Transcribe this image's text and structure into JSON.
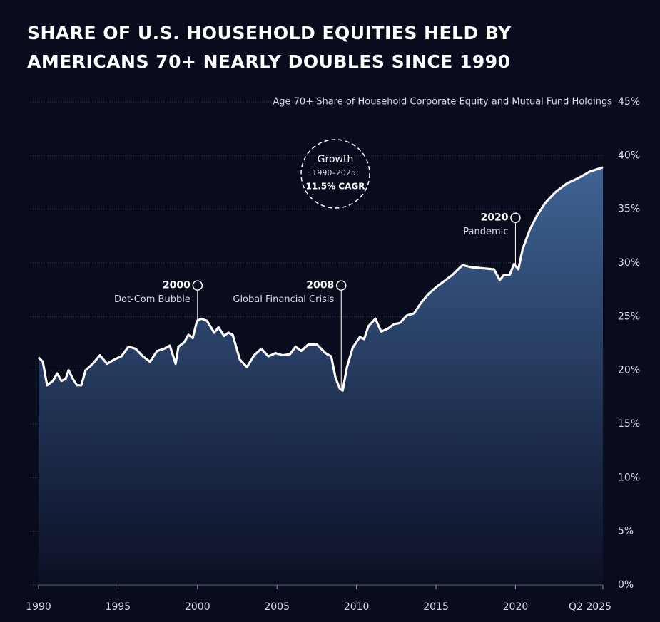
{
  "chart_data": {
    "type": "area",
    "title": "SHARE OF U.S. HOUSEHOLD EQUITIES HELD BY AMERICANS 70+ NEARLY DOUBLES SINCE 1990",
    "y_axis_label": "Age 70+ Share of Household Corporate Equity and Mutual Fund Holdings",
    "color": "#ffffff",
    "fill_color": "#3f6394",
    "grid": true,
    "x": [
      1990.0,
      1990.27,
      1990.54,
      1990.9,
      1991.17,
      1991.44,
      1991.71,
      1991.89,
      1992.16,
      1992.42,
      1992.69,
      1992.96,
      1993.41,
      1993.86,
      1994.31,
      1994.76,
      1995.21,
      1995.66,
      1996.11,
      1996.56,
      1997.01,
      1997.46,
      1997.9,
      1998.26,
      1998.62,
      1998.8,
      1999.16,
      1999.43,
      1999.7,
      1999.97,
      2000.24,
      2000.6,
      2001.05,
      2001.32,
      2001.67,
      2001.94,
      2002.21,
      2002.66,
      2003.11,
      2003.56,
      2004.01,
      2004.46,
      2004.91,
      2005.36,
      2005.81,
      2006.17,
      2006.52,
      2006.97,
      2007.51,
      2008.05,
      2008.41,
      2008.68,
      2008.95,
      2009.13,
      2009.4,
      2009.76,
      2010.21,
      2010.48,
      2010.75,
      2011.19,
      2011.55,
      2012.0,
      2012.36,
      2012.72,
      2013.17,
      2013.62,
      2014.07,
      2014.52,
      2015.06,
      2015.51,
      2016.04,
      2016.67,
      2017.21,
      2017.93,
      2018.65,
      2019.01,
      2019.28,
      2019.64,
      2019.91,
      2020.18,
      2020.45,
      2020.9,
      2021.35,
      2021.88,
      2022.51,
      2023.23,
      2023.95,
      2024.67,
      2025.5
    ],
    "values": [
      21.2,
      20.8,
      18.6,
      19.0,
      19.7,
      19.0,
      19.2,
      20.0,
      19.2,
      18.6,
      18.6,
      20.0,
      20.6,
      21.4,
      20.6,
      21.0,
      21.3,
      22.2,
      22.0,
      21.3,
      20.8,
      21.8,
      22.0,
      22.3,
      20.6,
      22.2,
      22.6,
      23.3,
      23.0,
      24.6,
      24.8,
      24.6,
      23.5,
      24.0,
      23.2,
      23.5,
      23.3,
      21.0,
      20.3,
      21.4,
      22.0,
      21.3,
      21.6,
      21.4,
      21.5,
      22.2,
      21.8,
      22.4,
      22.4,
      21.6,
      21.3,
      19.3,
      18.3,
      18.1,
      20.3,
      22.1,
      23.1,
      22.9,
      24.1,
      24.8,
      23.6,
      23.9,
      24.3,
      24.4,
      25.1,
      25.3,
      26.3,
      27.1,
      27.8,
      28.3,
      28.9,
      29.8,
      29.6,
      29.5,
      29.4,
      28.4,
      28.9,
      28.9,
      29.9,
      29.4,
      31.3,
      33.1,
      34.4,
      35.6,
      36.6,
      37.4,
      37.9,
      38.5,
      38.9
    ],
    "xlim": [
      1990,
      2025.5
    ],
    "xticks": [
      1990,
      1995,
      2000,
      2005,
      2010,
      2015,
      2020,
      {
        "value": 2025.5,
        "label": "Q2 2025"
      }
    ],
    "ylim": [
      0,
      45
    ],
    "yticks": [
      {
        "value": 0,
        "label": "0%"
      },
      {
        "value": 5,
        "label": "5%"
      },
      {
        "value": 10,
        "label": "10%"
      },
      {
        "value": 15,
        "label": "15%"
      },
      {
        "value": 20,
        "label": "20%"
      },
      {
        "value": 25,
        "label": "25%"
      },
      {
        "value": 30,
        "label": "30%"
      },
      {
        "value": 35,
        "label": "35%"
      },
      {
        "value": 40,
        "label": "40%"
      },
      {
        "value": 45,
        "label": "45%"
      }
    ],
    "annotations": [
      {
        "title": "2000",
        "text": "Dot-Com Bubble",
        "x": 2000,
        "y": 27.9
      },
      {
        "title": "2008",
        "text": "Global Financial Crisis",
        "x": 2009.04,
        "y": 27.9
      },
      {
        "title": "2020",
        "text": "Pandemic",
        "x": 2020,
        "y": 34.2
      }
    ],
    "growth_note": [
      "Growth",
      "1990–2025:",
      "11.5% CAGR"
    ]
  }
}
